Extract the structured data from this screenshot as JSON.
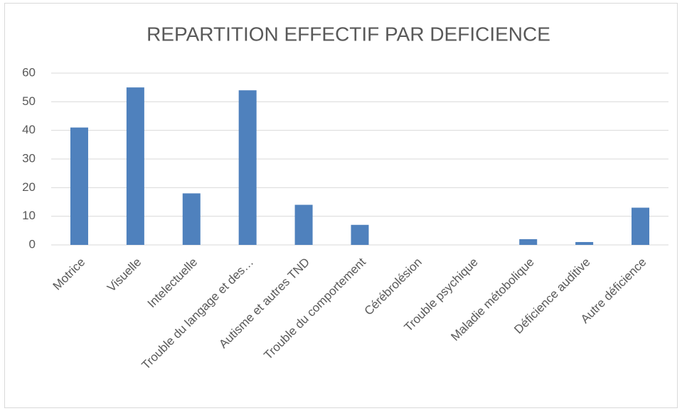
{
  "chart_data": {
    "type": "bar",
    "title": "REPARTITION EFFECTIF PAR DEFICIENCE",
    "categories": [
      "Motrice",
      "Visuelle",
      "Intelectuelle",
      "Trouble du langage et des…",
      "Autisme et autres TND",
      "Trouble du comportement",
      "Cérébrolésion",
      "Trouble psychique",
      "Maladie métobolique",
      "Déficience auditive",
      "Autre déficience"
    ],
    "values": [
      41,
      55,
      18,
      54,
      14,
      7,
      0,
      0,
      2,
      1,
      13
    ],
    "color": "#4f81bd",
    "ylim": [
      0,
      60
    ],
    "yticks": [
      0,
      10,
      20,
      30,
      40,
      50,
      60
    ],
    "grid": true
  }
}
